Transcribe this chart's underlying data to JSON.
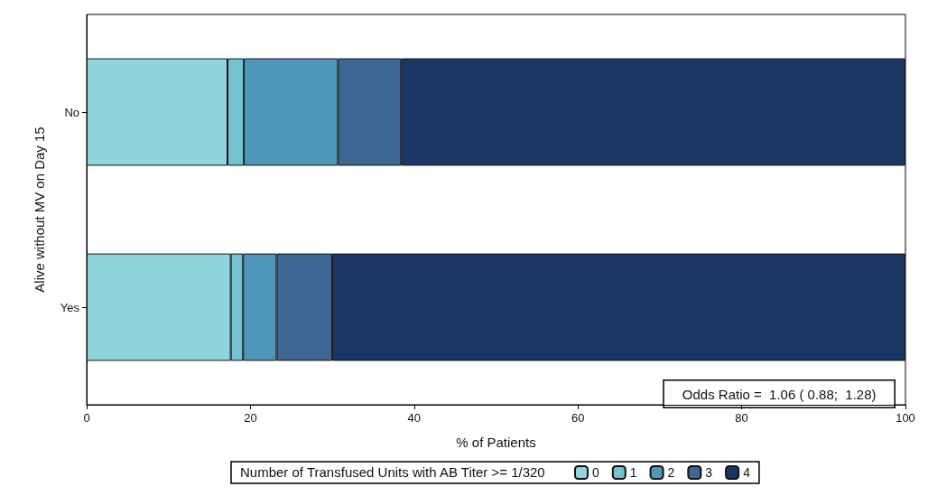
{
  "chart_data": {
    "type": "bar",
    "orientation": "horizontal",
    "stacked": true,
    "xlabel": "% of Patients",
    "ylabel": "Alive without MV on Day 15",
    "legend_title": "Number of Transfused Units with AB Titer >= 1/320",
    "categories": [
      "No",
      "Yes"
    ],
    "series": [
      {
        "name": "0",
        "color": "#8fd5de",
        "values": [
          17.2,
          17.6
        ]
      },
      {
        "name": "1",
        "color": "#72c2d3",
        "values": [
          2.0,
          1.5
        ]
      },
      {
        "name": "2",
        "color": "#4d98b8",
        "values": [
          11.5,
          4.1
        ]
      },
      {
        "name": "3",
        "color": "#3d6893",
        "values": [
          7.7,
          6.8
        ]
      },
      {
        "name": "4",
        "color": "#1b3865",
        "values": [
          61.6,
          70.0
        ]
      }
    ],
    "xlim": [
      0,
      100
    ],
    "xticks": [
      0,
      20,
      40,
      60,
      80,
      100
    ],
    "annotations": [
      "Odds Ratio =  1.06 ( 0.88;  1.28)"
    ],
    "legend": "bottom",
    "grid": false
  }
}
